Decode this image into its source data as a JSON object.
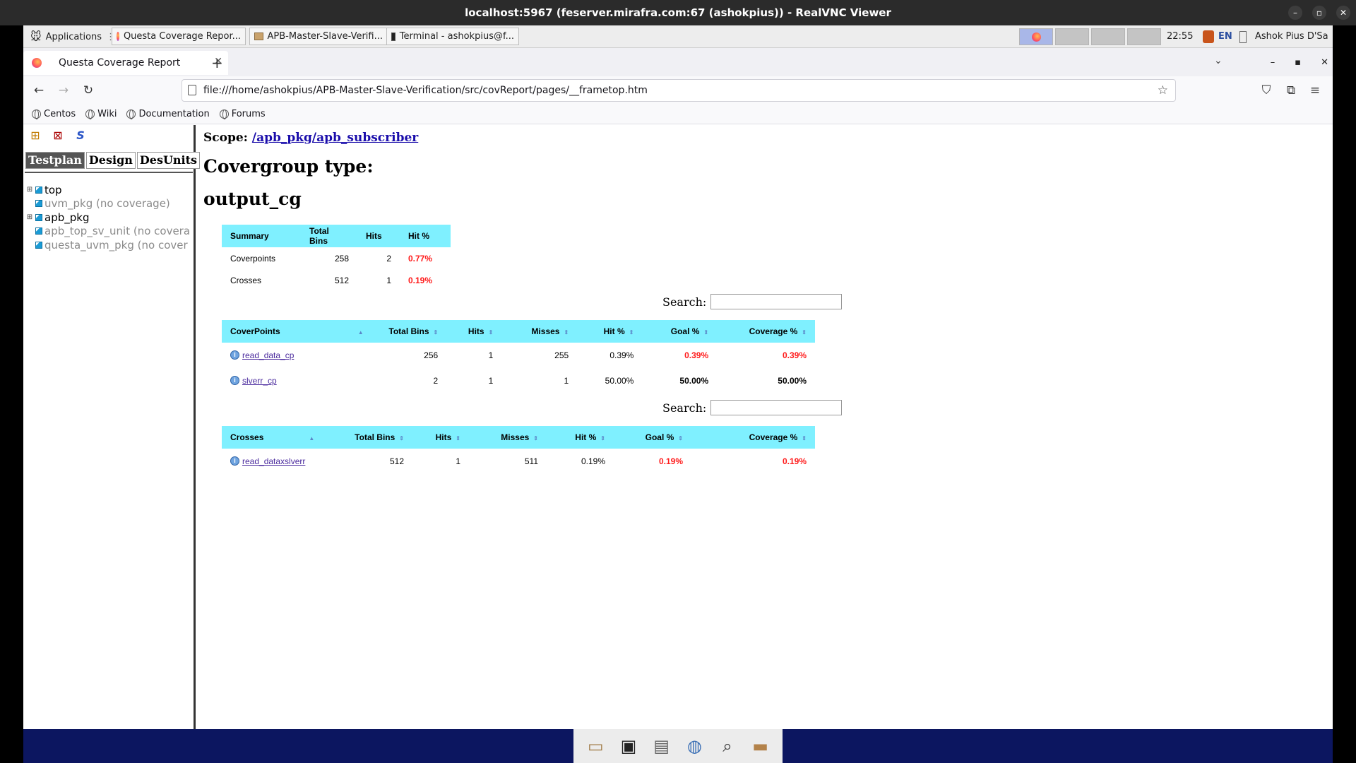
{
  "vnc": {
    "title": "localhost:5967 (feserver.mirafra.com:67 (ashokpius)) - RealVNC Viewer"
  },
  "panel": {
    "applications_label": "Applications",
    "tasks": [
      {
        "label": "Questa Coverage Repor..."
      },
      {
        "label": "APB-Master-Slave-Verifi..."
      },
      {
        "label": "Terminal - ashokpius@f..."
      }
    ],
    "clock": "22:55",
    "lang": "EN",
    "user": "Ashok Pius D'Sa"
  },
  "browser": {
    "tab_title": "Questa Coverage Report",
    "url": "file:///home/ashokpius/APB-Master-Slave-Verification/src/covReport/pages/__frametop.htm",
    "bookmarks": [
      "Centos",
      "Wiki",
      "Documentation",
      "Forums"
    ]
  },
  "left": {
    "tabs": [
      "Testplan",
      "Design",
      "DesUnits"
    ],
    "tree": [
      {
        "label": "top",
        "expandable": true,
        "dim": false
      },
      {
        "label": "uvm_pkg (no coverage)",
        "expandable": false,
        "dim": true
      },
      {
        "label": "apb_pkg",
        "expandable": true,
        "dim": false
      },
      {
        "label": "apb_top_sv_unit (no covera",
        "expandable": false,
        "dim": true
      },
      {
        "label": "questa_uvm_pkg (no cover",
        "expandable": false,
        "dim": true
      }
    ]
  },
  "report": {
    "scope_label": "Scope:",
    "scope_link": "/apb_pkg/apb_subscriber",
    "covergroup_heading": "Covergroup type:",
    "covergroup_name": "output_cg",
    "summary": {
      "headers": [
        "Summary",
        "Total Bins",
        "Hits",
        "Hit %"
      ],
      "rows": [
        {
          "name": "Coverpoints",
          "total": "258",
          "hits": "2",
          "hit_pct": "0.77%"
        },
        {
          "name": "Crosses",
          "total": "512",
          "hits": "1",
          "hit_pct": "0.19%"
        }
      ]
    },
    "search_label": "Search:",
    "coverpoints": {
      "headers": [
        "CoverPoints",
        "Total Bins",
        "Hits",
        "Misses",
        "Hit %",
        "Goal %",
        "Coverage %"
      ],
      "rows": [
        {
          "name": "read_data_cp",
          "total": "256",
          "hits": "1",
          "misses": "255",
          "hit_pct": "0.39%",
          "goal_pct": "0.39%",
          "cov_pct": "0.39%",
          "status": "red"
        },
        {
          "name": "slverr_cp",
          "total": "2",
          "hits": "1",
          "misses": "1",
          "hit_pct": "50.00%",
          "goal_pct": "50.00%",
          "cov_pct": "50.00%",
          "status": "black"
        }
      ]
    },
    "crosses": {
      "headers": [
        "Crosses",
        "Total Bins",
        "Hits",
        "Misses",
        "Hit %",
        "Goal %",
        "Coverage %"
      ],
      "rows": [
        {
          "name": "read_dataxslverr",
          "total": "512",
          "hits": "1",
          "misses": "511",
          "hit_pct": "0.19%",
          "goal_pct": "0.19%",
          "cov_pct": "0.19%",
          "status": "red"
        }
      ]
    }
  },
  "colors": {
    "table_header": "#7ff0ff",
    "low_coverage": "#ff1a1a",
    "dock_background": "#0c1660"
  }
}
